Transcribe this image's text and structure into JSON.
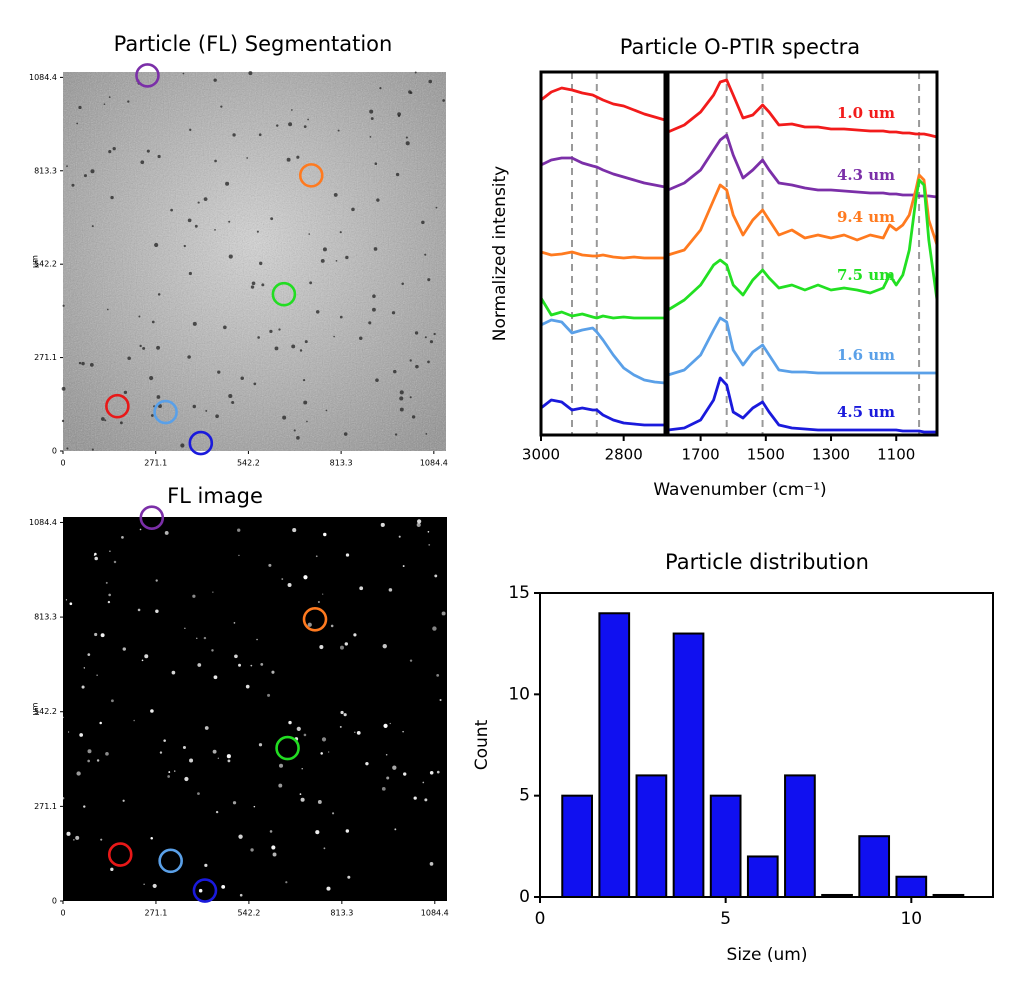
{
  "chart_data": [
    {
      "type": "image",
      "title": "Particle (FL) Segmentation",
      "ylabel": "μm",
      "background": "gray",
      "xlim": [
        0,
        1120
      ],
      "ylim": [
        0,
        1100
      ],
      "xticks": [
        0,
        271.1,
        542.2,
        813.3,
        1084.4
      ],
      "yticks": [
        0,
        271.1,
        542.2,
        813.3,
        1084.4
      ],
      "points": [
        {
          "x": 247,
          "y": 1090,
          "color": "#7b2fa8"
        },
        {
          "x": 726,
          "y": 800,
          "color": "#ff7a1f"
        },
        {
          "x": 646,
          "y": 455,
          "color": "#22dd22"
        },
        {
          "x": 159,
          "y": 130,
          "color": "#e81818"
        },
        {
          "x": 300,
          "y": 113,
          "color": "#5aa0e8"
        },
        {
          "x": 403,
          "y": 23,
          "color": "#1a1adc"
        }
      ]
    },
    {
      "type": "image",
      "title": "FL image",
      "ylabel": "μm",
      "background": "black",
      "xlim": [
        0,
        1120
      ],
      "ylim": [
        0,
        1100
      ],
      "xticks": [
        0,
        271.1,
        542.2,
        813.3,
        1084.4
      ],
      "yticks": [
        0,
        271.1,
        542.2,
        813.3,
        1084.4
      ],
      "points": [
        {
          "x": 259,
          "y": 1098,
          "color": "#7b2fa8"
        },
        {
          "x": 735,
          "y": 807,
          "color": "#ff7a1f"
        },
        {
          "x": 655,
          "y": 438,
          "color": "#22dd22"
        },
        {
          "x": 167,
          "y": 133,
          "color": "#e81818"
        },
        {
          "x": 314,
          "y": 115,
          "color": "#5aa0e8"
        },
        {
          "x": 414,
          "y": 30,
          "color": "#1a1adc"
        }
      ]
    },
    {
      "type": "line",
      "title": "Particle O-PTIR spectra",
      "xlabel": "Wavenumber (cm⁻¹)",
      "ylabel": "Normalized intensity",
      "xlim": [
        3000,
        2700
      ],
      "x2lim": [
        1800,
        975
      ],
      "ylim": [
        0,
        363
      ],
      "xticks": [
        3000,
        2800
      ],
      "x2ticks": [
        1700,
        1500,
        1300,
        1100
      ],
      "markers": [
        2925,
        2865,
        1620,
        1510,
        1030
      ],
      "x": [
        3000,
        2975,
        2950,
        2925,
        2900,
        2875,
        2865,
        2850,
        2825,
        2800,
        2775,
        2750,
        2725,
        2700,
        1800,
        1750,
        1700,
        1660,
        1640,
        1620,
        1600,
        1570,
        1540,
        1510,
        1490,
        1460,
        1420,
        1380,
        1340,
        1300,
        1260,
        1220,
        1180,
        1140,
        1120,
        1100,
        1080,
        1060,
        1040,
        1030,
        1015,
        1000,
        975
      ],
      "series": [
        {
          "name": "1.0 um",
          "color": "#f21b1b",
          "values": [
            335,
            343,
            347,
            345,
            342,
            340,
            338,
            335,
            331,
            329,
            325,
            321,
            318,
            315,
            303,
            310,
            323,
            340,
            353,
            355,
            340,
            317,
            320,
            330,
            323,
            310,
            311,
            308,
            308,
            306,
            306,
            305,
            304,
            304,
            303,
            303,
            302,
            302,
            301,
            301,
            301,
            300,
            298
          ]
        },
        {
          "name": "4.3 um",
          "color": "#7b2fa8",
          "values": [
            270,
            275,
            277,
            277,
            272,
            269,
            268,
            265,
            261,
            258,
            255,
            252,
            250,
            248,
            245,
            252,
            265,
            285,
            295,
            300,
            280,
            257,
            265,
            275,
            265,
            252,
            250,
            247,
            245,
            245,
            244,
            243,
            242,
            242,
            241,
            241,
            240,
            240,
            240,
            239,
            239,
            239,
            238
          ]
        },
        {
          "name": "9.4 um",
          "color": "#ff7a1f",
          "values": [
            183,
            180,
            181,
            183,
            180,
            179,
            179,
            180,
            178,
            177,
            178,
            177,
            177,
            177,
            180,
            185,
            205,
            235,
            250,
            245,
            220,
            200,
            215,
            225,
            215,
            200,
            205,
            197,
            200,
            197,
            200,
            195,
            200,
            197,
            210,
            205,
            210,
            220,
            245,
            260,
            255,
            215,
            190
          ]
        },
        {
          "name": "7.5 um",
          "color": "#22e022",
          "values": [
            137,
            120,
            123,
            119,
            121,
            118,
            117,
            119,
            117,
            118,
            117,
            117,
            117,
            117,
            125,
            135,
            150,
            170,
            175,
            170,
            150,
            140,
            155,
            165,
            157,
            147,
            150,
            145,
            150,
            145,
            147,
            145,
            142,
            147,
            160,
            150,
            160,
            185,
            235,
            255,
            250,
            195,
            135
          ]
        },
        {
          "name": "1.6 um",
          "color": "#5aa0e8",
          "values": [
            110,
            115,
            113,
            102,
            105,
            107,
            103,
            95,
            80,
            67,
            60,
            55,
            53,
            52,
            60,
            65,
            80,
            105,
            117,
            113,
            85,
            70,
            83,
            90,
            80,
            65,
            63,
            63,
            62,
            62,
            62,
            62,
            62,
            62,
            62,
            62,
            62,
            62,
            62,
            62,
            62,
            62,
            62
          ]
        },
        {
          "name": "4.5 um",
          "color": "#1a1adc",
          "values": [
            27,
            35,
            33,
            25,
            27,
            25,
            25,
            20,
            15,
            12,
            11,
            10,
            10,
            10,
            5,
            7,
            15,
            35,
            57,
            50,
            23,
            17,
            27,
            33,
            23,
            10,
            7,
            6,
            5,
            5,
            5,
            5,
            5,
            5,
            5,
            5,
            4,
            4,
            4,
            4,
            3,
            3,
            3
          ]
        }
      ]
    },
    {
      "type": "bar",
      "title": "Particle distribution",
      "xlabel": "Size (um)",
      "ylabel": "Count",
      "color": "#1010f0",
      "x": [
        1,
        2,
        3,
        4,
        5,
        6,
        7,
        8,
        9,
        10,
        11
      ],
      "values": [
        5,
        14,
        6,
        13,
        5,
        2,
        6,
        0.1,
        3,
        1,
        0.1
      ],
      "xlim": [
        0,
        12.2
      ],
      "ylim": [
        0,
        15
      ],
      "xticks": [
        0,
        5,
        10
      ],
      "yticks": [
        0,
        5,
        10,
        15
      ]
    }
  ]
}
